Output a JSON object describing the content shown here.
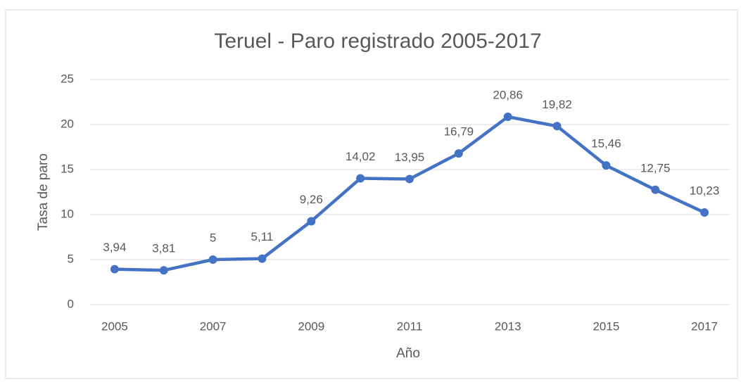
{
  "chart_data": {
    "type": "line",
    "title": "Teruel - Paro registrado 2005-2017",
    "x_label": "Año",
    "y_label": "Tasa de paro",
    "x": [
      2005,
      2006,
      2007,
      2008,
      2009,
      2010,
      2011,
      2012,
      2013,
      2014,
      2015,
      2016,
      2017
    ],
    "series": [
      {
        "name": "Tasa de paro",
        "color": "#4472c4",
        "values": [
          3.94,
          3.81,
          5,
          5.11,
          9.26,
          14.02,
          13.95,
          16.79,
          20.86,
          19.82,
          15.46,
          12.75,
          10.23
        ],
        "value_labels": [
          "3,94",
          "3,81",
          "5",
          "5,11",
          "9,26",
          "14,02",
          "13,95",
          "16,79",
          "20,86",
          "19,82",
          "15,46",
          "12,75",
          "10,23"
        ]
      }
    ],
    "xlim": [
      2004.5,
      2017.5
    ],
    "xticks": [
      2005,
      2007,
      2009,
      2011,
      2013,
      2015,
      2017
    ],
    "ylim": [
      0,
      25
    ],
    "yticks": [
      0,
      5,
      10,
      15,
      20,
      25
    ],
    "grid": true
  }
}
